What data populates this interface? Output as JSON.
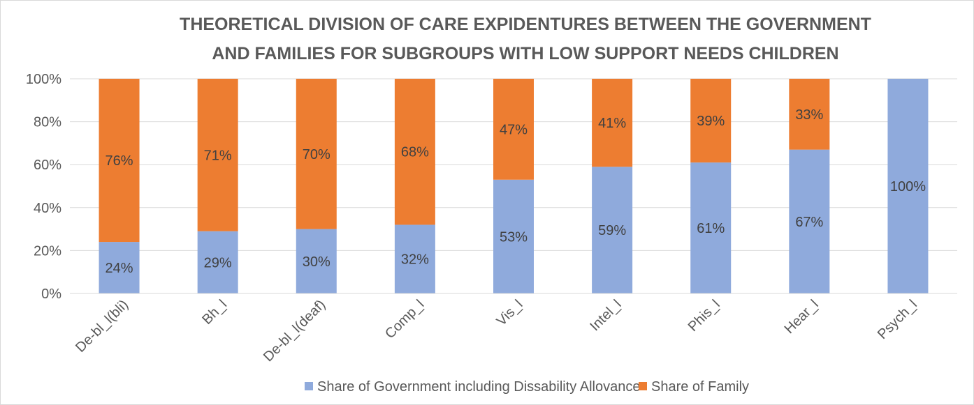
{
  "chart_data": {
    "type": "bar",
    "stacked": true,
    "title_lines": [
      "THEORETICAL DIVISION OF CARE EXPIDENTURES BETWEEN THE GOVERNMENT",
      "AND FAMILIES FOR SUBGROUPS WITH LOW SUPPORT NEEDS CHILDREN"
    ],
    "categories": [
      "De-bl_l(bli)",
      "Bh_l",
      "De-bl_l(deaf)",
      "Comp_l",
      "Vis_l",
      "Intel_l",
      "Phis_l",
      "Hear_l",
      "Psych_l"
    ],
    "series": [
      {
        "name": "Share of Government including Dissability Allovance",
        "color": "#8faadc",
        "values": [
          24,
          29,
          30,
          32,
          53,
          59,
          61,
          67,
          100
        ],
        "labels": [
          "24%",
          "29%",
          "30%",
          "32%",
          "53%",
          "59%",
          "61%",
          "67%",
          "100%"
        ]
      },
      {
        "name": "Share of Family",
        "color": "#ed7d31",
        "values": [
          76,
          71,
          70,
          68,
          47,
          41,
          39,
          33,
          0
        ],
        "labels": [
          "76%",
          "71%",
          "70%",
          "68%",
          "47%",
          "41%",
          "39%",
          "33%",
          ""
        ]
      }
    ],
    "ylim": [
      0,
      100
    ],
    "yticks": [
      0,
      20,
      40,
      60,
      80,
      100
    ],
    "ytick_labels": [
      "0%",
      "20%",
      "40%",
      "60%",
      "80%",
      "100%"
    ],
    "grid": true,
    "legend_position": "bottom"
  }
}
